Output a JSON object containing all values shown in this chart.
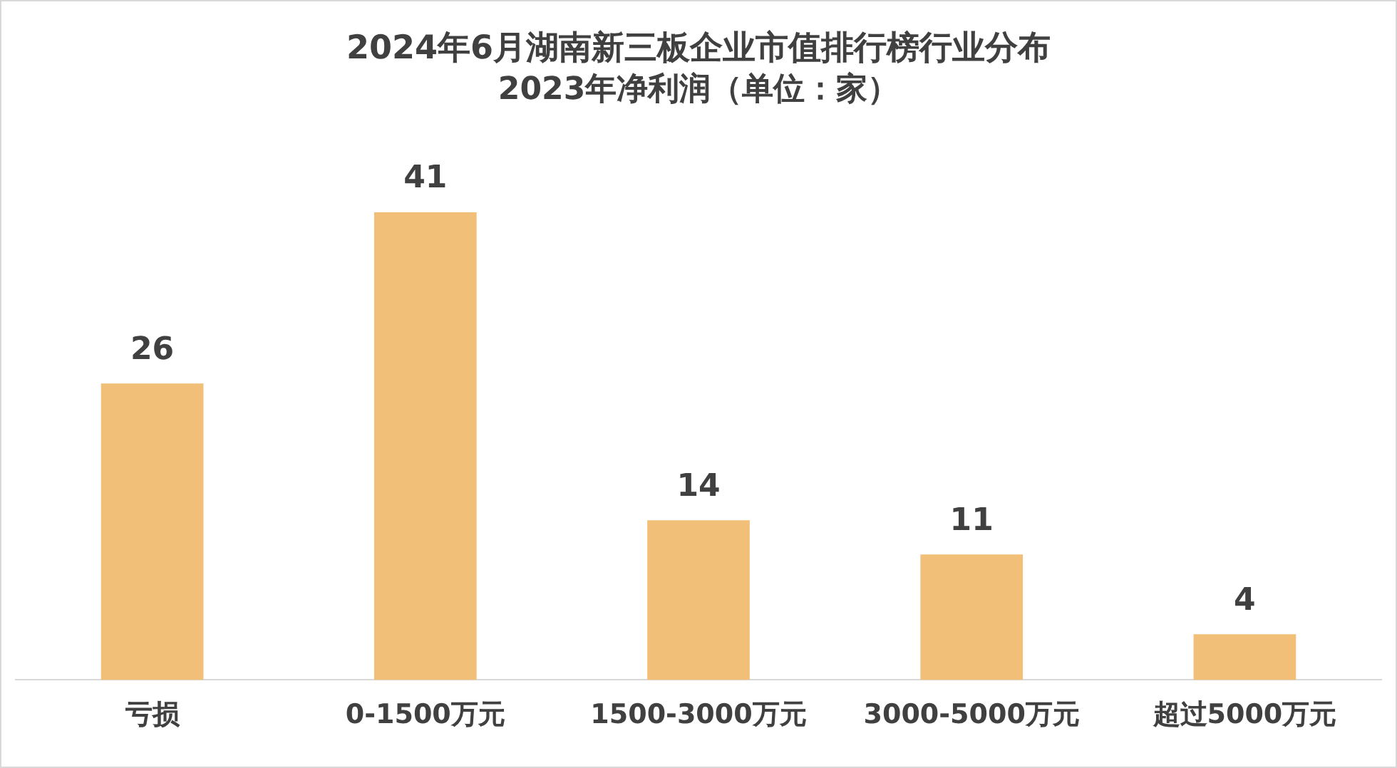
{
  "chart_data": {
    "type": "bar",
    "title": "2024年6月湖南新三板企业市值排行榜行业分布",
    "subtitle": "2023年净利润（单位：家）",
    "categories": [
      "亏损",
      "0-1500万元",
      "1500-3000万元",
      "3000-5000万元",
      "超过5000万元"
    ],
    "values": [
      26,
      41,
      14,
      11,
      4
    ],
    "color": "#f2bf78",
    "data_labels": true,
    "grid": false,
    "legend": false
  }
}
